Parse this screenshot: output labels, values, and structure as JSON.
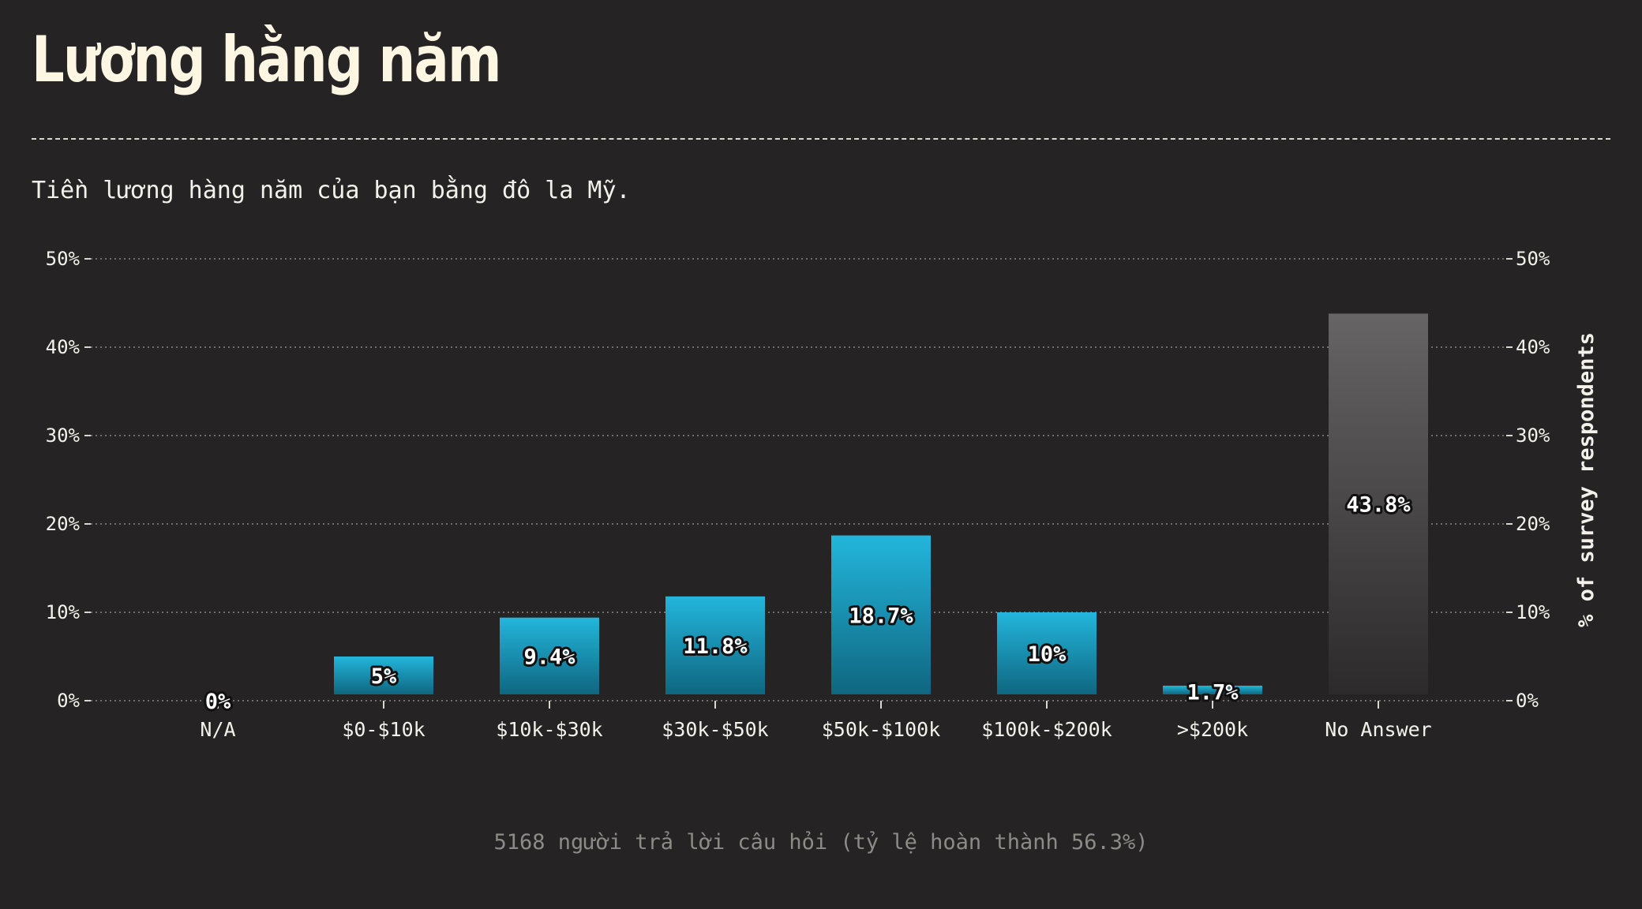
{
  "header": {
    "title": "Lương hằng năm",
    "subtitle": "Tiền lương hàng năm của bạn bằng đô la Mỹ."
  },
  "footer": {
    "note": "5168 người trả lời câu hỏi (tỷ lệ hoàn thành 56.3%)"
  },
  "colors": {
    "background": "#252324",
    "bar_top": "#23b6dc",
    "bar_bottom": "#0f6680",
    "no_answer_top": "#666464",
    "no_answer_bottom": "#2c2a2b",
    "grid": "#8a8884"
  },
  "chart_data": {
    "type": "bar",
    "categories": [
      "N/A",
      "$0-$10k",
      "$10k-$30k",
      "$30k-$50k",
      "$50k-$100k",
      "$100k-$200k",
      ">$200k",
      "No Answer"
    ],
    "values": [
      0,
      5,
      9.4,
      11.8,
      18.7,
      10,
      1.7,
      43.8
    ],
    "value_labels": [
      "0%",
      "5%",
      "9.4%",
      "11.8%",
      "18.7%",
      "10%",
      "1.7%",
      "43.8%"
    ],
    "highlight_category": "No Answer",
    "ylim": [
      0,
      50
    ],
    "yticks": [
      0,
      10,
      20,
      30,
      40,
      50
    ],
    "ytick_labels": [
      "0%",
      "10%",
      "20%",
      "30%",
      "40%",
      "50%"
    ],
    "ylabel": "% of survey respondents",
    "xlabel": "",
    "grid": true,
    "y_axis_sides": "both"
  }
}
